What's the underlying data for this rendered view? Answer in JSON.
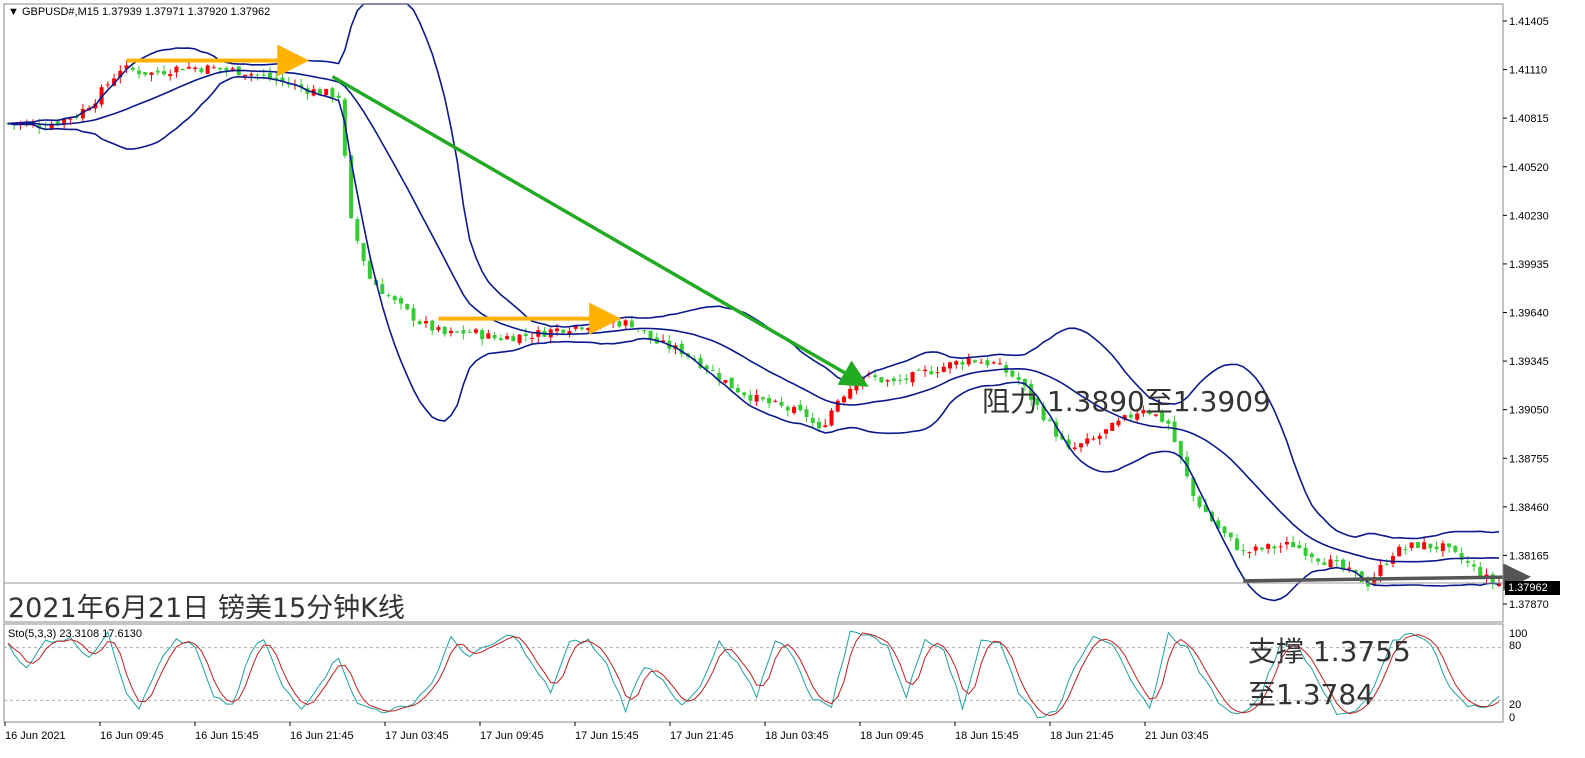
{
  "header": {
    "symbol": "GBPUSD#,M15",
    "ohlc": "1.37939 1.37971 1.37920 1.37962"
  },
  "stochastic_header": "Sto(5,3,3) 23.3108 17.6130",
  "current_price_tag": "1.37962",
  "annotations": {
    "title": "2021年6月21日 镑美15分钟K线",
    "resistance": "阻力 1.3890至1.3909",
    "support_line1": "支撑 1.3755",
    "support_line2": "至1.3784"
  },
  "colors": {
    "bull": "#ff0000",
    "bear": "#33cc33",
    "bollinger": "#0a1a8c",
    "trend_arrow": "#22aa22",
    "flat_arrow": "#ffb300",
    "support_arrow": "#555555",
    "sto_main": "#20a0a0",
    "sto_signal": "#c02020"
  },
  "chart_data": [
    {
      "type": "candlestick",
      "panel": "price",
      "ylim": [
        1.3772,
        1.4155
      ],
      "y_ticks": [
        "1.41405",
        "1.41110",
        "1.40815",
        "1.40520",
        "1.40230",
        "1.39935",
        "1.39640",
        "1.39345",
        "1.39050",
        "1.38755",
        "1.38460",
        "1.38165",
        "1.37870"
      ],
      "x_ticks": [
        "16 Jun 2021",
        "16 Jun 09:45",
        "16 Jun 15:45",
        "16 Jun 21:45",
        "17 Jun 03:45",
        "17 Jun 09:45",
        "17 Jun 15:45",
        "17 Jun 21:45",
        "18 Jun 03:45",
        "18 Jun 09:45",
        "18 Jun 15:45",
        "18 Jun 21:45",
        "21 Jun 03:45"
      ],
      "indicators": [
        "Bollinger Bands"
      ],
      "close_profile": [
        [
          0,
          1.4081
        ],
        [
          6,
          1.408
        ],
        [
          11,
          1.4086
        ],
        [
          14,
          1.4096
        ],
        [
          18,
          1.4115
        ],
        [
          23,
          1.4112
        ],
        [
          28,
          1.4116
        ],
        [
          33,
          1.4115
        ],
        [
          38,
          1.4113
        ],
        [
          43,
          1.4108
        ],
        [
          48,
          1.4102
        ],
        [
          53,
          1.4098
        ],
        [
          55,
          1.402
        ],
        [
          58,
          1.3985
        ],
        [
          62,
          1.397
        ],
        [
          66,
          1.3958
        ],
        [
          70,
          1.395
        ],
        [
          74,
          1.3952
        ],
        [
          78,
          1.3948
        ],
        [
          84,
          1.395
        ],
        [
          90,
          1.3955
        ],
        [
          96,
          1.3958
        ],
        [
          100,
          1.3957
        ],
        [
          104,
          1.3945
        ],
        [
          108,
          1.394
        ],
        [
          112,
          1.393
        ],
        [
          116,
          1.3918
        ],
        [
          120,
          1.391
        ],
        [
          124,
          1.3905
        ],
        [
          128,
          1.39
        ],
        [
          130,
          1.389
        ],
        [
          133,
          1.391
        ],
        [
          137,
          1.3925
        ],
        [
          142,
          1.392
        ],
        [
          148,
          1.3928
        ],
        [
          154,
          1.3935
        ],
        [
          158,
          1.3932
        ],
        [
          162,
          1.3922
        ],
        [
          166,
          1.39
        ],
        [
          170,
          1.3878
        ],
        [
          174,
          1.3885
        ],
        [
          178,
          1.3895
        ],
        [
          182,
          1.3905
        ],
        [
          186,
          1.3895
        ],
        [
          190,
          1.385
        ],
        [
          194,
          1.383
        ],
        [
          198,
          1.3815
        ],
        [
          202,
          1.3818
        ],
        [
          206,
          1.382
        ],
        [
          210,
          1.3812
        ],
        [
          214,
          1.3805
        ],
        [
          218,
          1.3796
        ],
        [
          222,
          1.3815
        ],
        [
          226,
          1.382
        ],
        [
          230,
          1.3818
        ],
        [
          234,
          1.3808
        ],
        [
          238,
          1.3796
        ]
      ],
      "annotations_drawn": [
        {
          "kind": "trend_arrow",
          "from": [
            52,
            1.411
          ],
          "to": [
            137,
            1.392
          ],
          "color": "green"
        },
        {
          "kind": "flat_arrow",
          "from": [
            19,
            1.412
          ],
          "to": [
            47,
            1.412
          ],
          "color": "orange"
        },
        {
          "kind": "flat_arrow",
          "from": [
            69,
            1.396
          ],
          "to": [
            97,
            1.396
          ],
          "color": "orange"
        },
        {
          "kind": "support_arrow",
          "from": [
            198,
            1.37975
          ],
          "to": [
            243,
            1.38
          ],
          "color": "gray"
        }
      ]
    },
    {
      "type": "line",
      "panel": "stochastic",
      "name": "Sto(5,3,3)",
      "ylim": [
        0,
        100
      ],
      "y_ticks": [
        "100",
        "80",
        "20",
        "0"
      ],
      "levels": [
        80,
        20
      ],
      "main_last": 23.3108,
      "signal_last": 17.613,
      "main_profile": [
        [
          0,
          85
        ],
        [
          3,
          55
        ],
        [
          6,
          88
        ],
        [
          10,
          90
        ],
        [
          13,
          70
        ],
        [
          16,
          95
        ],
        [
          19,
          30
        ],
        [
          21,
          12
        ],
        [
          24,
          60
        ],
        [
          27,
          90
        ],
        [
          30,
          80
        ],
        [
          33,
          22
        ],
        [
          36,
          15
        ],
        [
          39,
          75
        ],
        [
          41,
          90
        ],
        [
          44,
          35
        ],
        [
          47,
          10
        ],
        [
          50,
          40
        ],
        [
          53,
          70
        ],
        [
          56,
          15
        ],
        [
          60,
          8
        ],
        [
          64,
          12
        ],
        [
          68,
          40
        ],
        [
          71,
          90
        ],
        [
          74,
          70
        ],
        [
          78,
          85
        ],
        [
          81,
          96
        ],
        [
          84,
          60
        ],
        [
          87,
          30
        ],
        [
          90,
          85
        ],
        [
          93,
          88
        ],
        [
          96,
          60
        ],
        [
          99,
          10
        ],
        [
          102,
          60
        ],
        [
          105,
          45
        ],
        [
          108,
          12
        ],
        [
          111,
          35
        ],
        [
          114,
          85
        ],
        [
          117,
          60
        ],
        [
          120,
          25
        ],
        [
          123,
          90
        ],
        [
          126,
          70
        ],
        [
          129,
          20
        ],
        [
          132,
          15
        ],
        [
          135,
          97
        ],
        [
          138,
          96
        ],
        [
          141,
          80
        ],
        [
          144,
          25
        ],
        [
          147,
          90
        ],
        [
          150,
          80
        ],
        [
          153,
          10
        ],
        [
          156,
          90
        ],
        [
          159,
          85
        ],
        [
          162,
          30
        ],
        [
          165,
          3
        ],
        [
          168,
          5
        ],
        [
          171,
          60
        ],
        [
          174,
          95
        ],
        [
          177,
          85
        ],
        [
          180,
          40
        ],
        [
          183,
          10
        ],
        [
          186,
          95
        ],
        [
          189,
          80
        ],
        [
          192,
          40
        ],
        [
          195,
          10
        ],
        [
          198,
          5
        ],
        [
          201,
          30
        ],
        [
          204,
          85
        ],
        [
          207,
          80
        ],
        [
          210,
          40
        ],
        [
          213,
          5
        ],
        [
          216,
          8
        ],
        [
          219,
          35
        ],
        [
          222,
          90
        ],
        [
          225,
          95
        ],
        [
          228,
          85
        ],
        [
          231,
          35
        ],
        [
          234,
          15
        ],
        [
          237,
          15
        ],
        [
          239,
          23
        ]
      ]
    }
  ]
}
